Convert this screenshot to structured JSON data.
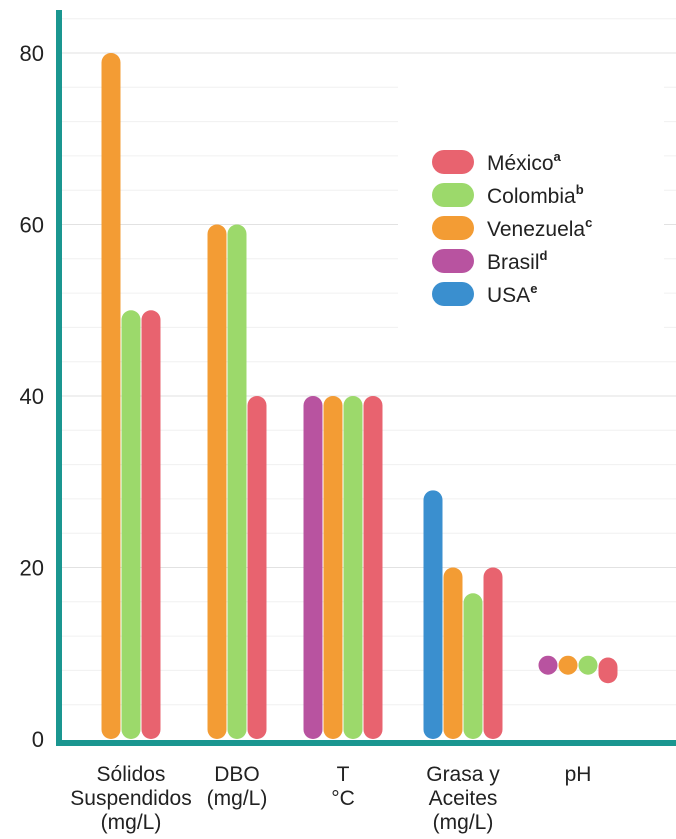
{
  "chart_data": {
    "type": "bar",
    "title": "",
    "xlabel": "",
    "ylabel": "",
    "ylim": [
      0,
      80
    ],
    "yticks": [
      0,
      20,
      40,
      60,
      80
    ],
    "grid": true,
    "legend_position": "top-right",
    "categories": [
      {
        "lines": [
          "Sólidos",
          "Suspendidos",
          "(mg/L)"
        ]
      },
      {
        "lines": [
          "DBO",
          "(mg/L)"
        ]
      },
      {
        "lines": [
          "T",
          "°C"
        ]
      },
      {
        "lines": [
          "Grasa y",
          "Aceites",
          "(mg/L)"
        ]
      },
      {
        "lines": [
          "pH"
        ]
      }
    ],
    "series": [
      {
        "key": "usa",
        "name": "USA",
        "sup": "e",
        "color": "#3a8fcf"
      },
      {
        "key": "brasil",
        "name": "Brasil",
        "sup": "d",
        "color": "#b853a0"
      },
      {
        "key": "venezuela",
        "name": "Venezuela",
        "sup": "c",
        "color": "#f39c34"
      },
      {
        "key": "colombia",
        "name": "Colombia",
        "sup": "b",
        "color": "#9cd96b"
      },
      {
        "key": "mexico",
        "name": "México",
        "sup": "a",
        "color": "#e8636f"
      }
    ],
    "legend_order": [
      "mexico",
      "colombia",
      "venezuela",
      "brasil",
      "usa"
    ],
    "groups": [
      {
        "category": 0,
        "bars": [
          {
            "series": "venezuela",
            "from": 0,
            "to": 80
          },
          {
            "series": "colombia",
            "from": 0,
            "to": 50
          },
          {
            "series": "mexico",
            "from": 0,
            "to": 50
          }
        ]
      },
      {
        "category": 1,
        "bars": [
          {
            "series": "venezuela",
            "from": 0,
            "to": 60
          },
          {
            "series": "colombia",
            "from": 0,
            "to": 60
          },
          {
            "series": "mexico",
            "from": 0,
            "to": 40
          }
        ]
      },
      {
        "category": 2,
        "bars": [
          {
            "series": "brasil",
            "from": 0,
            "to": 40
          },
          {
            "series": "venezuela",
            "from": 0,
            "to": 40
          },
          {
            "series": "colombia",
            "from": 0,
            "to": 40
          },
          {
            "series": "mexico",
            "from": 0,
            "to": 40
          }
        ]
      },
      {
        "category": 3,
        "bars": [
          {
            "series": "usa",
            "from": 0,
            "to": 29
          },
          {
            "series": "venezuela",
            "from": 0,
            "to": 20
          },
          {
            "series": "colombia",
            "from": 0,
            "to": 17
          },
          {
            "series": "mexico",
            "from": 0,
            "to": 20
          }
        ]
      },
      {
        "category": 4,
        "bars": [
          {
            "series": "brasil",
            "from": 7.5,
            "to": 8.5
          },
          {
            "series": "venezuela",
            "from": 7.5,
            "to": 8.5
          },
          {
            "series": "colombia",
            "from": 7.5,
            "to": 8.5
          },
          {
            "series": "mexico",
            "from": 6.5,
            "to": 9.5
          }
        ]
      }
    ]
  }
}
